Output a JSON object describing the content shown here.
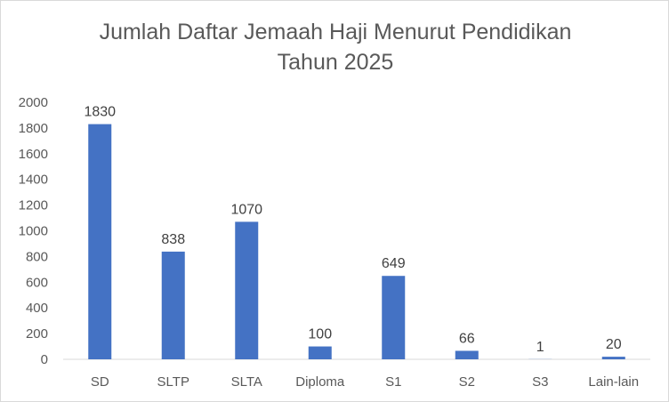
{
  "chart_data": {
    "type": "bar",
    "title_lines": [
      "Jumlah Daftar Jemaah Haji Menurut Pendidikan",
      "Tahun 2025"
    ],
    "categories": [
      "SD",
      "SLTP",
      "SLTA",
      "Diploma",
      "S1",
      "S2",
      "S3",
      "Lain-lain"
    ],
    "values": [
      1830,
      838,
      1070,
      100,
      649,
      66,
      1,
      20
    ],
    "ylim": [
      0,
      2000
    ],
    "yticks": [
      0,
      200,
      400,
      600,
      800,
      1000,
      1200,
      1400,
      1600,
      1800,
      2000
    ],
    "grid": false,
    "legend": "none",
    "bar_color": "#4472C4",
    "axis_color": "#d9d9d9"
  }
}
